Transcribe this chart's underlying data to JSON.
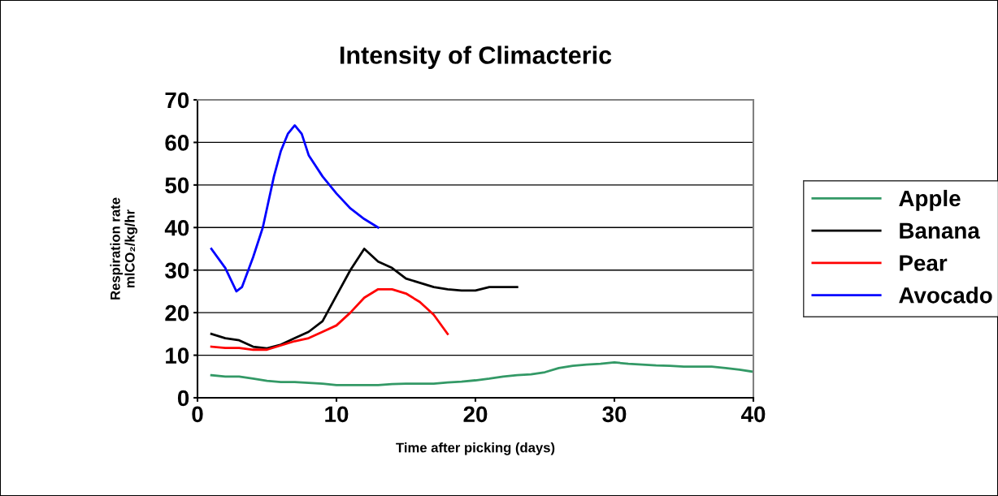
{
  "chart_data": {
    "type": "line",
    "title": "Intensity of Climacteric",
    "xlabel": "Time after picking (days)",
    "ylabel": "Respiration rate\nmlCO₂/kg/hr",
    "xlim": [
      0,
      40
    ],
    "xticks": [
      0,
      10,
      20,
      30,
      40
    ],
    "ylim": [
      0,
      70
    ],
    "yticks": [
      0,
      10,
      20,
      30,
      40,
      50,
      60,
      70
    ],
    "grid": "y",
    "legend": "right",
    "marker": "none",
    "line_style": "solid",
    "series": [
      {
        "name": "Apple",
        "color": "#339966",
        "x": [
          1,
          2,
          3,
          4,
          5,
          6,
          7,
          8,
          9,
          10,
          11,
          12,
          13,
          14,
          15,
          16,
          17,
          18,
          19,
          20,
          21,
          22,
          23,
          24,
          25,
          26,
          27,
          28,
          29,
          30,
          31,
          32,
          33,
          34,
          35,
          36,
          37,
          38,
          39,
          40
        ],
        "values": [
          5.3,
          5,
          5,
          4.5,
          4,
          3.7,
          3.7,
          3.5,
          3.3,
          3,
          3,
          3,
          3,
          3.2,
          3.3,
          3.3,
          3.3,
          3.6,
          3.8,
          4.1,
          4.5,
          5,
          5.3,
          5.5,
          6,
          7,
          7.5,
          7.8,
          8,
          8.3,
          8,
          7.8,
          7.6,
          7.5,
          7.3,
          7.3,
          7.3,
          7,
          6.6,
          6.1
        ]
      },
      {
        "name": "Banana",
        "color": "#000000",
        "x": [
          1,
          2,
          3,
          4,
          5,
          6,
          7,
          8,
          9,
          10,
          11,
          12,
          13,
          14,
          15,
          16,
          17,
          18,
          19,
          20,
          21,
          22,
          23
        ],
        "values": [
          15,
          14,
          13.5,
          12,
          11.6,
          12.5,
          14,
          15.5,
          18,
          24,
          30,
          35,
          32,
          30.5,
          28,
          27,
          26,
          25.5,
          25.2,
          25.2,
          26,
          26,
          26
        ]
      },
      {
        "name": "Pear",
        "color": "#ff0000",
        "x": [
          1,
          2,
          3,
          4,
          5,
          6,
          7,
          8,
          9,
          10,
          11,
          12,
          13,
          14,
          15,
          16,
          17,
          18
        ],
        "values": [
          12,
          11.7,
          11.7,
          11.3,
          11.3,
          12.3,
          13.3,
          14,
          15.5,
          17,
          20,
          23.5,
          25.5,
          25.5,
          24.5,
          22.5,
          19.5,
          15
        ]
      },
      {
        "name": "Avocado",
        "color": "#0000ff",
        "x": [
          1,
          2,
          2.8,
          3.2,
          4,
          4.7,
          5.5,
          6,
          6.5,
          7,
          7.5,
          8,
          9,
          10,
          11,
          12,
          13
        ],
        "values": [
          35,
          30.5,
          25,
          26,
          33,
          40,
          52,
          58,
          62,
          64,
          62,
          57,
          52,
          48,
          44.5,
          42,
          40
        ]
      }
    ]
  }
}
